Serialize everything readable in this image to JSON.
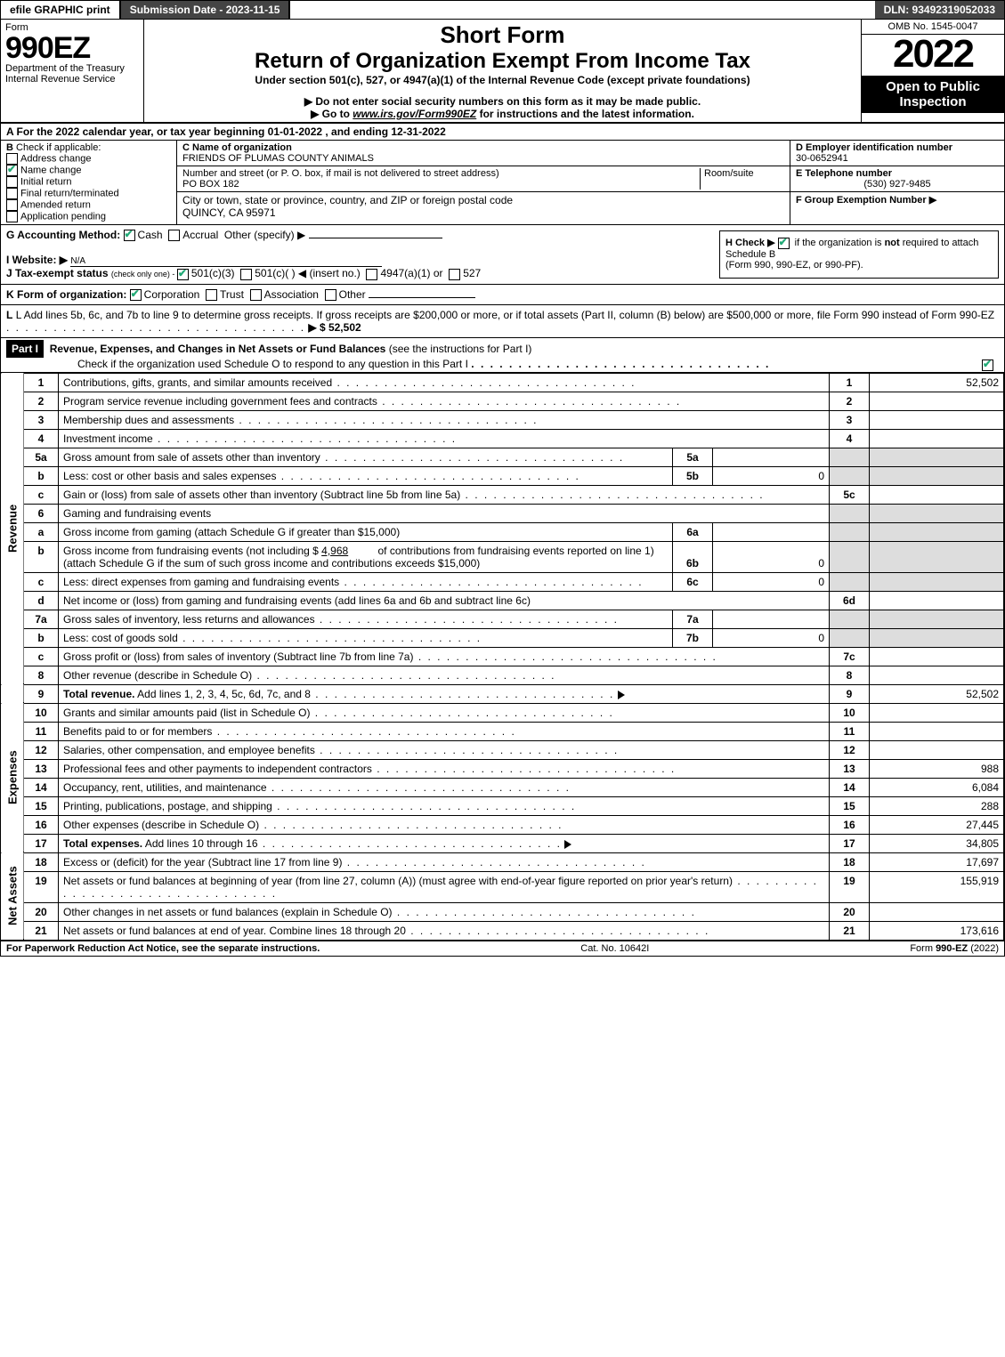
{
  "topbar": {
    "efile": "efile GRAPHIC print",
    "submission": "Submission Date - 2023-11-15",
    "dln": "DLN: 93492319052033"
  },
  "header": {
    "form_label": "Form",
    "form_number": "990EZ",
    "dept": "Department of the Treasury\nInternal Revenue Service",
    "short_form": "Short Form",
    "title": "Return of Organization Exempt From Income Tax",
    "subtitle": "Under section 501(c), 527, or 4947(a)(1) of the Internal Revenue Code (except private foundations)",
    "note1": "▶ Do not enter social security numbers on this form as it may be made public.",
    "note2_pre": "▶ Go to ",
    "note2_link": "www.irs.gov/Form990EZ",
    "note2_post": " for instructions and the latest information.",
    "omb": "OMB No. 1545-0047",
    "year": "2022",
    "open": "Open to Public Inspection"
  },
  "A": "A  For the 2022 calendar year, or tax year beginning 01-01-2022  , and ending 12-31-2022",
  "B": {
    "label": "B",
    "check": "Check if applicable:",
    "items": [
      {
        "label": "Address change",
        "checked": false
      },
      {
        "label": "Name change",
        "checked": true
      },
      {
        "label": "Initial return",
        "checked": false
      },
      {
        "label": "Final return/terminated",
        "checked": false
      },
      {
        "label": "Amended return",
        "checked": false
      },
      {
        "label": "Application pending",
        "checked": false
      }
    ]
  },
  "C": {
    "name_label": "C Name of organization",
    "name": "FRIENDS OF PLUMAS COUNTY ANIMALS",
    "street_label": "Number and street (or P. O. box, if mail is not delivered to street address)",
    "room_label": "Room/suite",
    "street": "PO BOX 182",
    "city_label": "City or town, state or province, country, and ZIP or foreign postal code",
    "city": "QUINCY, CA  95971"
  },
  "D": {
    "ein_label": "D Employer identification number",
    "ein": "30-0652941",
    "tel_label": "E Telephone number",
    "tel": "(530) 927-9485",
    "group_label": "F Group Exemption Number  ▶"
  },
  "G": {
    "text": "G Accounting Method:",
    "cash": "Cash",
    "accrual": "Accrual",
    "other": "Other (specify) ▶"
  },
  "H": {
    "text": "H   Check ▶",
    "rest": "if the organization is ",
    "not": "not",
    "rest2": " required to attach Schedule B",
    "rest3": "(Form 990, 990-EZ, or 990-PF)."
  },
  "I": {
    "label": "I Website: ▶",
    "val": "N/A"
  },
  "J": {
    "pre": "J Tax-exempt status ",
    "small": "(check only one) - ",
    "o501c3": "501(c)(3)",
    "o501c": "501(c)(  ) ◀ (insert no.)",
    "o4947": "4947(a)(1) or",
    "o527": "527"
  },
  "K": {
    "pre": "K Form of organization: ",
    "corp": "Corporation",
    "trust": "Trust",
    "assoc": "Association",
    "other": "Other"
  },
  "L": {
    "text": "L Add lines 5b, 6c, and 7b to line 9 to determine gross receipts. If gross receipts are $200,000 or more, or if total assets (Part II, column (B) below) are $500,000 or more, file Form 990 instead of Form 990-EZ",
    "arrow": "▶ $ 52,502"
  },
  "part1": {
    "label": "Part I",
    "title": "Revenue, Expenses, and Changes in Net Assets or Fund Balances",
    "paren": "(see the instructions for Part I)",
    "check": "Check if the organization used Schedule O to respond to any question in this Part I"
  },
  "rev_label": "Revenue",
  "exp_label": "Expenses",
  "net_label": "Net Assets",
  "lines": {
    "l1": {
      "n": "1",
      "d": "Contributions, gifts, grants, and similar amounts received",
      "ref": "1",
      "amt": "52,502"
    },
    "l2": {
      "n": "2",
      "d": "Program service revenue including government fees and contracts",
      "ref": "2",
      "amt": ""
    },
    "l3": {
      "n": "3",
      "d": "Membership dues and assessments",
      "ref": "3",
      "amt": ""
    },
    "l4": {
      "n": "4",
      "d": "Investment income",
      "ref": "4",
      "amt": ""
    },
    "l5a": {
      "n": "5a",
      "d": "Gross amount from sale of assets other than inventory",
      "m": "5a",
      "v": ""
    },
    "l5b": {
      "n": "b",
      "d": "Less: cost or other basis and sales expenses",
      "m": "5b",
      "v": "0"
    },
    "l5c": {
      "n": "c",
      "d": "Gain or (loss) from sale of assets other than inventory (Subtract line 5b from line 5a)",
      "ref": "5c",
      "amt": ""
    },
    "l6": {
      "n": "6",
      "d": "Gaming and fundraising events"
    },
    "l6a": {
      "n": "a",
      "d": "Gross income from gaming (attach Schedule G if greater than $15,000)",
      "m": "6a",
      "v": ""
    },
    "l6b": {
      "n": "b",
      "d1": "Gross income from fundraising events (not including $ ",
      "fund": "4,968",
      "d2": "          of contributions from fundraising events reported on line 1) (attach Schedule G if the sum of such gross income and contributions exceeds $15,000)",
      "m": "6b",
      "v": "0"
    },
    "l6c": {
      "n": "c",
      "d": "Less: direct expenses from gaming and fundraising events",
      "m": "6c",
      "v": "0"
    },
    "l6d": {
      "n": "d",
      "d": "Net income or (loss) from gaming and fundraising events (add lines 6a and 6b and subtract line 6c)",
      "ref": "6d",
      "amt": ""
    },
    "l7a": {
      "n": "7a",
      "d": "Gross sales of inventory, less returns and allowances",
      "m": "7a",
      "v": ""
    },
    "l7b": {
      "n": "b",
      "d": "Less: cost of goods sold",
      "m": "7b",
      "v": "0"
    },
    "l7c": {
      "n": "c",
      "d": "Gross profit or (loss) from sales of inventory (Subtract line 7b from line 7a)",
      "ref": "7c",
      "amt": ""
    },
    "l8": {
      "n": "8",
      "d": "Other revenue (describe in Schedule O)",
      "ref": "8",
      "amt": ""
    },
    "l9": {
      "n": "9",
      "d": "Total revenue. Add lines 1, 2, 3, 4, 5c, 6d, 7c, and 8",
      "ref": "9",
      "amt": "52,502"
    },
    "l10": {
      "n": "10",
      "d": "Grants and similar amounts paid (list in Schedule O)",
      "ref": "10",
      "amt": ""
    },
    "l11": {
      "n": "11",
      "d": "Benefits paid to or for members",
      "ref": "11",
      "amt": ""
    },
    "l12": {
      "n": "12",
      "d": "Salaries, other compensation, and employee benefits",
      "ref": "12",
      "amt": ""
    },
    "l13": {
      "n": "13",
      "d": "Professional fees and other payments to independent contractors",
      "ref": "13",
      "amt": "988"
    },
    "l14": {
      "n": "14",
      "d": "Occupancy, rent, utilities, and maintenance",
      "ref": "14",
      "amt": "6,084"
    },
    "l15": {
      "n": "15",
      "d": "Printing, publications, postage, and shipping",
      "ref": "15",
      "amt": "288"
    },
    "l16": {
      "n": "16",
      "d": "Other expenses (describe in Schedule O)",
      "ref": "16",
      "amt": "27,445"
    },
    "l17": {
      "n": "17",
      "d": "Total expenses. Add lines 10 through 16",
      "ref": "17",
      "amt": "34,805"
    },
    "l18": {
      "n": "18",
      "d": "Excess or (deficit) for the year (Subtract line 17 from line 9)",
      "ref": "18",
      "amt": "17,697"
    },
    "l19": {
      "n": "19",
      "d": "Net assets or fund balances at beginning of year (from line 27, column (A)) (must agree with end-of-year figure reported on prior year's return)",
      "ref": "19",
      "amt": "155,919"
    },
    "l20": {
      "n": "20",
      "d": "Other changes in net assets or fund balances (explain in Schedule O)",
      "ref": "20",
      "amt": ""
    },
    "l21": {
      "n": "21",
      "d": "Net assets or fund balances at end of year. Combine lines 18 through 20",
      "ref": "21",
      "amt": "173,616"
    }
  },
  "footer": {
    "left": "For Paperwork Reduction Act Notice, see the separate instructions.",
    "mid": "Cat. No. 10642I",
    "right_pre": "Form ",
    "right_bold": "990-EZ",
    "right_post": " (2022)"
  }
}
